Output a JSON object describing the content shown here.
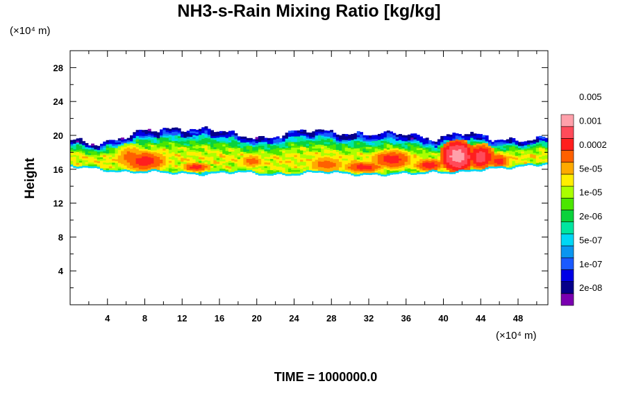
{
  "chart_data": {
    "type": "heatmap",
    "title": "NH3-s-Rain Mixing Ratio [kg/kg]",
    "ylabel": "Height",
    "x_unit_label": "(×10⁴ m)",
    "y_unit_label": "(×10⁴ m)",
    "xlim": [
      0,
      51.2
    ],
    "ylim": [
      0,
      30
    ],
    "x_ticks": [
      4,
      8,
      12,
      16,
      20,
      24,
      28,
      32,
      36,
      40,
      44,
      48
    ],
    "x_tick_labels": [
      "4",
      "8",
      "12",
      "16",
      "20",
      "24",
      "28",
      "32",
      "36",
      "40",
      "44",
      "48"
    ],
    "y_ticks": [
      4,
      8,
      12,
      16,
      20,
      24,
      28
    ],
    "y_tick_labels": [
      "4",
      "8",
      "12",
      "16",
      "20",
      "24",
      "28"
    ],
    "footer": "TIME = 1000000.0",
    "colorbar": {
      "colors": [
        "#7a00b0",
        "#06008a",
        "#0000e6",
        "#1a5aff",
        "#0a96f0",
        "#00d7f5",
        "#00e6a0",
        "#0ad23c",
        "#4be600",
        "#aaff00",
        "#ffee00",
        "#ffaa00",
        "#ff6000",
        "#ff1e1e",
        "#ff4b5a",
        "#ffa0aa"
      ],
      "labels": [
        "2e-08",
        "1e-07",
        "5e-07",
        "2e-06",
        "1e-05",
        "5e-05",
        "0.0002",
        "0.001",
        "0.005"
      ]
    },
    "field": {
      "description_levels": "color index 0-15 along colorbar",
      "layer_bottom_km_x1e4": [
        16.3,
        16.0,
        15.7,
        15.6,
        15.5,
        15.5,
        15.6,
        15.4,
        15.4,
        15.6,
        15.5,
        15.3,
        15.4,
        15.7,
        15.6,
        16.0,
        16.4,
        16.6
      ],
      "layer_top_x1e4": [
        19.2,
        19.0,
        19.8,
        20.5,
        20.8,
        20.6,
        19.8,
        19.7,
        20.3,
        20.4,
        20.2,
        20.0,
        20.1,
        19.5,
        20.1,
        19.6,
        19.4,
        19.4
      ],
      "hotspots": [
        {
          "x": 8,
          "y": 17.0,
          "level": 13,
          "rx": 2.2,
          "ry": 1.1
        },
        {
          "x": 6.5,
          "y": 17.5,
          "level": 12,
          "rx": 1.5,
          "ry": 1.3
        },
        {
          "x": 13.5,
          "y": 16.3,
          "level": 13,
          "rx": 1.4,
          "ry": 0.5
        },
        {
          "x": 19.5,
          "y": 17.0,
          "level": 12,
          "rx": 1.2,
          "ry": 0.8
        },
        {
          "x": 27.5,
          "y": 16.6,
          "level": 12,
          "rx": 2.0,
          "ry": 1.0
        },
        {
          "x": 31.5,
          "y": 16.3,
          "level": 13,
          "rx": 2.0,
          "ry": 0.6
        },
        {
          "x": 34.5,
          "y": 17.2,
          "level": 13,
          "rx": 2.0,
          "ry": 1.0
        },
        {
          "x": 38.5,
          "y": 16.5,
          "level": 13,
          "rx": 1.5,
          "ry": 0.7
        },
        {
          "x": 41.5,
          "y": 17.6,
          "level": 15,
          "rx": 1.5,
          "ry": 1.6
        },
        {
          "x": 44.0,
          "y": 17.5,
          "level": 14,
          "rx": 1.3,
          "ry": 1.3
        },
        {
          "x": 46.0,
          "y": 17.0,
          "level": 13,
          "rx": 1.0,
          "ry": 0.8
        }
      ]
    }
  }
}
